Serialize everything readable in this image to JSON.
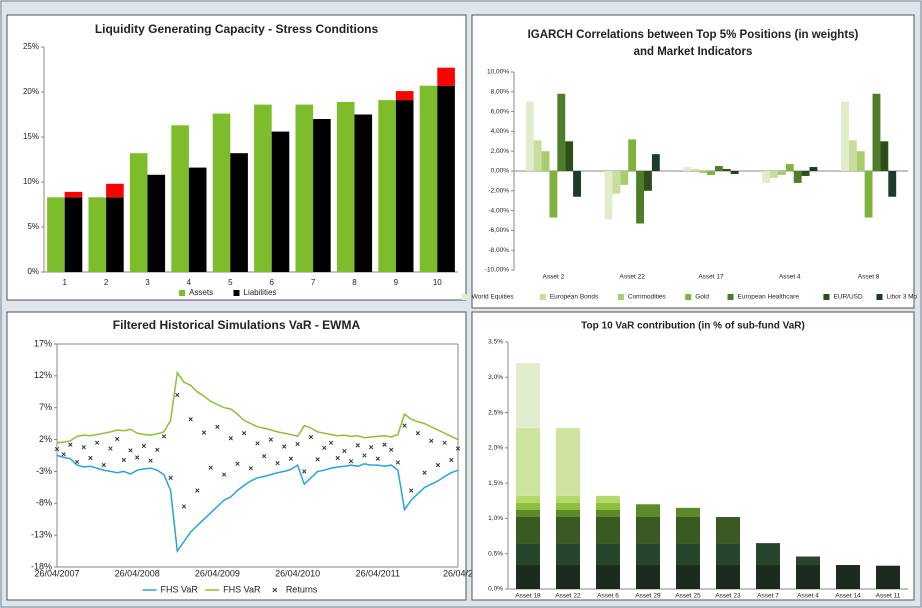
{
  "chart_data": [
    {
      "type": "bar",
      "title": "Liquidity Generating Capacity - Stress Conditions",
      "categories": [
        "1",
        "2",
        "3",
        "4",
        "5",
        "6",
        "7",
        "8",
        "9",
        "10"
      ],
      "series": [
        {
          "name": "Assets",
          "color": "#7dbd2c",
          "values": [
            8.3,
            8.3,
            13.2,
            16.3,
            17.6,
            18.6,
            18.6,
            18.9,
            19.1,
            20.7
          ]
        },
        {
          "name": "Liabilities",
          "color": "#000000",
          "values": [
            8.3,
            8.3,
            10.8,
            11.6,
            13.2,
            15.6,
            17.0,
            17.5,
            19.1,
            20.7
          ]
        },
        {
          "color": "#ff0000",
          "stacked": true,
          "values": [
            0.6,
            1.5,
            0,
            0,
            0,
            0,
            0,
            0,
            1.0,
            2.0
          ]
        }
      ],
      "ylim": [
        0,
        25
      ],
      "yticks": [
        {
          "value": 0,
          "label": "0%"
        },
        {
          "value": 5,
          "label": "5%"
        },
        {
          "value": 10,
          "label": "10%"
        },
        {
          "value": 15,
          "label": "15%"
        },
        {
          "value": 20,
          "label": "20%"
        },
        {
          "value": 25,
          "label": "25%"
        }
      ],
      "grid": false
    },
    {
      "type": "bar",
      "title": [
        "IGARCH Correlations between Top 5% Positions (in weights)",
        "and Market Indicators"
      ],
      "categories": [
        "Asset 2",
        "Asset 22",
        "Asset 17",
        "Asset 4",
        "Asset 8"
      ],
      "series": [
        {
          "name": "World Equities",
          "color": "#e2ebcc",
          "values": [
            7.0,
            -4.9,
            0.4,
            -1.2,
            7.0
          ]
        },
        {
          "name": "European Bonds",
          "color": "#c8de9e",
          "values": [
            3.1,
            -2.3,
            0.2,
            -0.7,
            3.1
          ]
        },
        {
          "name": "Commodities",
          "color": "#a9cd6c",
          "values": [
            2.0,
            -1.4,
            -0.2,
            -0.4,
            2.0
          ]
        },
        {
          "name": "Gold",
          "color": "#7fb23e",
          "values": [
            -4.7,
            3.2,
            -0.4,
            0.7,
            -4.7
          ]
        },
        {
          "name": "European Healthcare",
          "color": "#4e7d28",
          "values": [
            7.8,
            -5.3,
            0.5,
            -1.2,
            7.8
          ]
        },
        {
          "name": "EUR/USD",
          "color": "#2f4d1b",
          "values": [
            3.0,
            -2.0,
            0.2,
            -0.5,
            3.0
          ]
        },
        {
          "name": "Libor 3 Mo",
          "color": "#1d3a2b",
          "values": [
            -2.6,
            1.7,
            -0.3,
            0.4,
            -2.6
          ]
        }
      ],
      "ylim": [
        -10,
        10
      ],
      "yticks": [
        {
          "value": -10,
          "label": "-10,00%"
        },
        {
          "value": -8,
          "label": "-8,00%"
        },
        {
          "value": -6,
          "label": "-6,00%"
        },
        {
          "value": -4,
          "label": "-4,00%"
        },
        {
          "value": -2,
          "label": "-2,00%"
        },
        {
          "value": 0,
          "label": "0,00%"
        },
        {
          "value": 2,
          "label": "2,00%"
        },
        {
          "value": 4,
          "label": "4,00%"
        },
        {
          "value": 6,
          "label": "6,00%"
        },
        {
          "value": 8,
          "label": "8,00%"
        },
        {
          "value": 10,
          "label": "10,00%"
        }
      ],
      "grid": false
    },
    {
      "type": "line",
      "title": "Filtered Historical Simulations VaR - EWMA",
      "categories": [
        "26/04/2007",
        null,
        null,
        null,
        null,
        null,
        null,
        null,
        null,
        null,
        null,
        null,
        "26/04/2008",
        null,
        null,
        null,
        null,
        null,
        null,
        null,
        null,
        null,
        null,
        null,
        "26/04/2009",
        null,
        null,
        null,
        null,
        null,
        null,
        null,
        null,
        null,
        null,
        null,
        "26/04/2010",
        null,
        null,
        null,
        null,
        null,
        null,
        null,
        null,
        null,
        null,
        null,
        "26/04/2011",
        null,
        null,
        null,
        null,
        null,
        null,
        null,
        null,
        null,
        null,
        null,
        "26/04/2"
      ],
      "series": [
        {
          "name": "FHS VaR",
          "color": "#29a3d9",
          "values": [
            -0.5,
            -0.8,
            -1.0,
            -2.0,
            -2.3,
            -2.2,
            -2.5,
            -2.8,
            -3.0,
            -3.2,
            -3.0,
            -3.4,
            -2.8,
            -2.6,
            -2.5,
            -2.8,
            -3.5,
            -6.0,
            -15.5,
            -14.0,
            -12.5,
            -11.5,
            -10.5,
            -9.5,
            -8.5,
            -7.5,
            -7.0,
            -6.0,
            -5.2,
            -4.5,
            -4.0,
            -3.8,
            -3.5,
            -3.2,
            -3.0,
            -2.7,
            -2.0,
            -5.0,
            -4.0,
            -3.0,
            -2.8,
            -2.5,
            -2.3,
            -2.2,
            -2.0,
            -2.2,
            -1.8,
            -2.0,
            -2.0,
            -2.2,
            -2.0,
            -2.8,
            -9.0,
            -7.5,
            -6.5,
            -5.5,
            -5.0,
            -4.5,
            -3.8,
            -3.2,
            -2.8
          ]
        },
        {
          "name": "FHS VaR",
          "color": "#8dbf3a",
          "values": [
            1.5,
            1.6,
            1.8,
            2.5,
            2.7,
            2.6,
            2.8,
            3.0,
            3.2,
            3.5,
            3.4,
            3.6,
            3.0,
            2.8,
            2.7,
            2.9,
            3.2,
            5.0,
            12.5,
            11.0,
            10.5,
            9.5,
            8.8,
            8.0,
            7.5,
            7.0,
            6.8,
            6.0,
            5.0,
            4.5,
            4.0,
            3.8,
            3.5,
            3.2,
            3.0,
            2.8,
            2.5,
            4.2,
            3.8,
            3.2,
            3.0,
            2.8,
            2.6,
            2.7,
            2.5,
            2.6,
            2.3,
            2.4,
            2.5,
            2.6,
            2.4,
            2.8,
            6.0,
            5.2,
            4.8,
            4.5,
            4.0,
            3.5,
            3.0,
            2.5,
            2.0
          ]
        },
        {
          "name": "Returns",
          "color": "#333333",
          "marker": "x",
          "line": false,
          "values": [
            0.5,
            -0.3,
            1.2,
            -1.5,
            0.8,
            -0.9,
            1.5,
            -2.0,
            0.6,
            2.1,
            -1.2,
            0.3,
            -0.8,
            1.0,
            -1.3,
            0.4,
            2.5,
            -4.0,
            9.0,
            -8.5,
            5.2,
            -6.0,
            3.1,
            -2.4,
            4.0,
            -3.5,
            2.2,
            -1.8,
            3.0,
            -2.5,
            1.4,
            -0.6,
            2.0,
            -1.7,
            0.9,
            -1.0,
            1.3,
            -3.0,
            2.4,
            -1.1,
            0.7,
            1.5,
            -0.9,
            0.2,
            -1.4,
            1.1,
            -0.5,
            0.8,
            -1.0,
            1.2,
            0.4,
            -1.6,
            4.2,
            -6.0,
            3.0,
            -3.2,
            1.8,
            -2.0,
            1.5,
            -1.2,
            0.6
          ]
        }
      ],
      "ylim": [
        -18,
        17
      ],
      "yticks": [
        {
          "value": -18,
          "label": "-18%"
        },
        {
          "value": -13,
          "label": "-13%"
        },
        {
          "value": -8,
          "label": "-8%"
        },
        {
          "value": -3,
          "label": "-3%"
        },
        {
          "value": 2,
          "label": "2%"
        },
        {
          "value": 7,
          "label": "7%"
        },
        {
          "value": 12,
          "label": "12%"
        },
        {
          "value": 17,
          "label": "17%"
        }
      ],
      "grid": false
    },
    {
      "type": "bar",
      "title": "Top 10 VaR contribution (in % of sub-fund VaR)",
      "stacked": true,
      "categories": [
        "Asset 18",
        "Asset 22",
        "Asset 6",
        "Asset 29",
        "Asset 25",
        "Asset 23",
        "Asset 7",
        "Asset 4",
        "Asset 14",
        "Asset 11"
      ],
      "series": [
        {
          "color": "#1c2b1e",
          "values": [
            0.34,
            0.34,
            0.34,
            0.34,
            0.34,
            0.34,
            0.34,
            0.34,
            0.34,
            0.33
          ]
        },
        {
          "color": "#27452d",
          "values": [
            0.31,
            0.31,
            0.31,
            0.31,
            0.31,
            0.31,
            0.31,
            0.12,
            0,
            0
          ]
        },
        {
          "color": "#3a5a22",
          "values": [
            0.37,
            0.37,
            0.37,
            0.37,
            0.37,
            0.37,
            0,
            0,
            0,
            0
          ]
        },
        {
          "color": "#5a8a2a",
          "values": [
            0.1,
            0.1,
            0.1,
            0.18,
            0.13,
            0,
            0,
            0,
            0,
            0
          ]
        },
        {
          "color": "#8dbf3a",
          "values": [
            0.1,
            0.1,
            0.1,
            0,
            0,
            0,
            0,
            0,
            0,
            0
          ]
        },
        {
          "color": "#b5d86a",
          "values": [
            0.1,
            0.1,
            0.1,
            0,
            0,
            0,
            0,
            0,
            0,
            0
          ]
        },
        {
          "color": "#cfe3a0",
          "values": [
            0.96,
            0.96,
            0,
            0,
            0,
            0,
            0,
            0,
            0,
            0
          ]
        },
        {
          "color": "#e2edcf",
          "values": [
            0.92,
            0,
            0,
            0,
            0,
            0,
            0,
            0,
            0,
            0
          ]
        }
      ],
      "ylim": [
        0,
        3.5
      ],
      "yticks": [
        {
          "value": 0,
          "label": "0,0%"
        },
        {
          "value": 0.5,
          "label": "0,5%"
        },
        {
          "value": 1,
          "label": "1,0%"
        },
        {
          "value": 1.5,
          "label": "1,5%"
        },
        {
          "value": 2,
          "label": "2,0%"
        },
        {
          "value": 2.5,
          "label": "2,5%"
        },
        {
          "value": 3,
          "label": "3,0%"
        },
        {
          "value": 3.5,
          "label": "3,5%"
        }
      ],
      "grid": false
    }
  ]
}
